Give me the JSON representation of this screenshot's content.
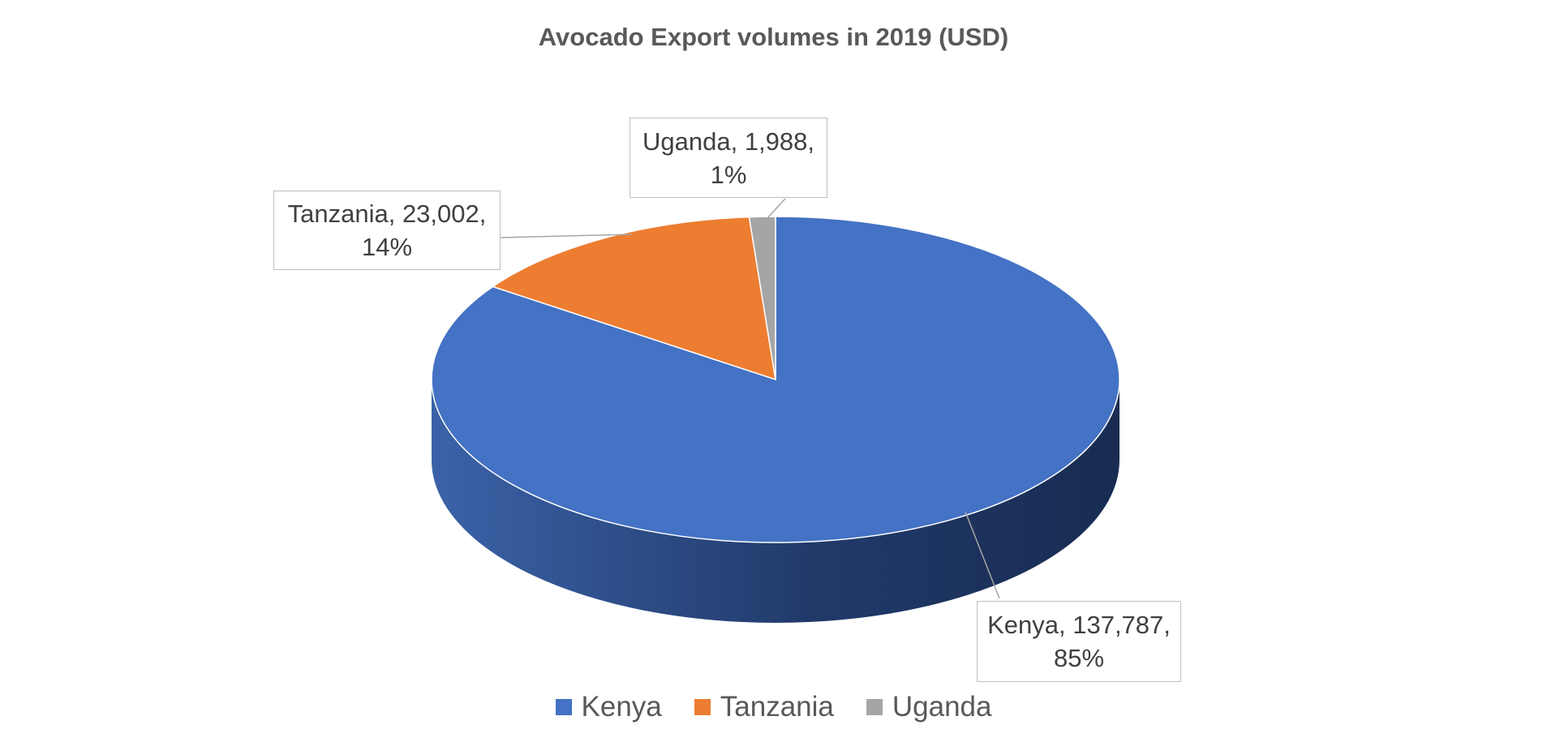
{
  "chart_data": {
    "type": "pie",
    "title": "Avocado Export volumes in 2019 (USD)",
    "slices": [
      {
        "name": "Kenya",
        "value": 137787,
        "value_label": "137,787",
        "percent_label": "85%",
        "color": "#4472C4"
      },
      {
        "name": "Tanzania",
        "value": 23002,
        "value_label": "23,002",
        "percent_label": "14%",
        "color": "#ED7D31"
      },
      {
        "name": "Uganda",
        "value": 1988,
        "value_label": "1,988",
        "percent_label": "1%",
        "color": "#A5A5A5"
      }
    ],
    "legend": {
      "position": "bottom",
      "entries": [
        "Kenya",
        "Tanzania",
        "Uganda"
      ]
    }
  }
}
